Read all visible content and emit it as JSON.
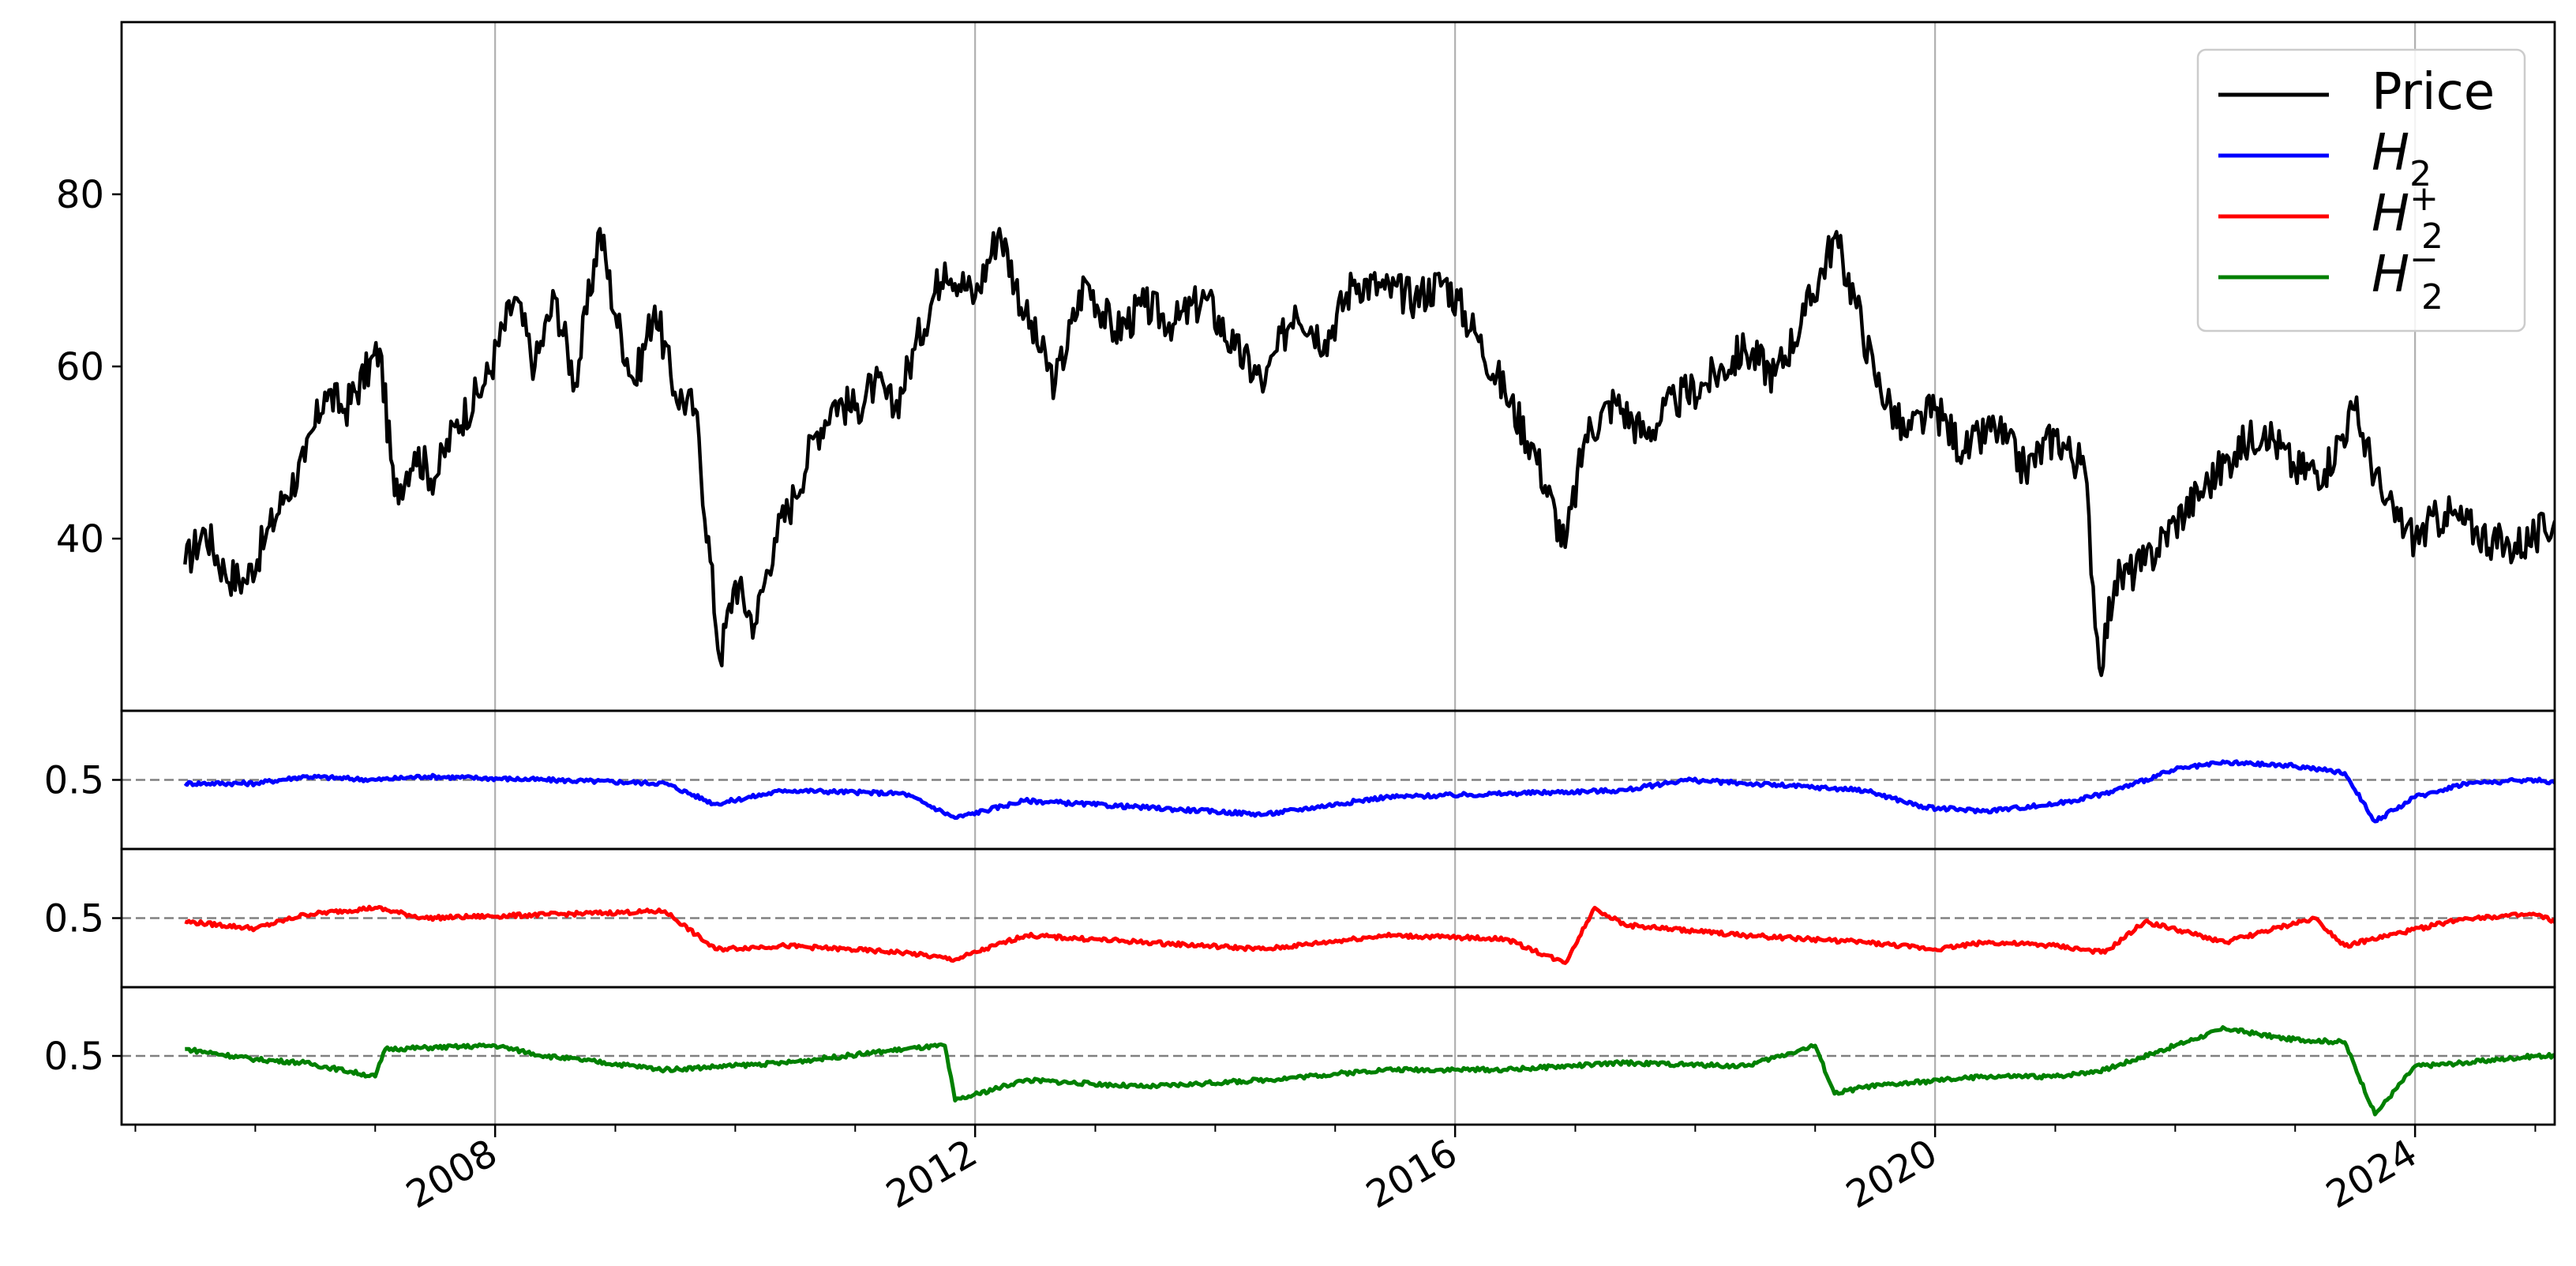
{
  "chart_data": {
    "type": "line",
    "title": "",
    "xlabel": "",
    "x_ticks": [
      "2008",
      "2012",
      "2016",
      "2020",
      "2024"
    ],
    "xlim": [
      "2004-11-20",
      "2025-03-01"
    ],
    "grid": "vertical lines at major year ticks",
    "legend_position": "top-right",
    "colors": {
      "price": "#000000",
      "h2": "#0000ff",
      "h2_plus": "#ff0000",
      "h2_minus": "#008000",
      "reference": "#808080"
    },
    "panels": [
      {
        "id": "price",
        "ylim": [
          20,
          100
        ],
        "y_ticks": [
          "40",
          "60",
          "80"
        ],
        "series": [
          {
            "name": "Price",
            "color": "#000000",
            "points": [
              [
                "2005-06-01",
                37
              ],
              [
                "2005-08-01",
                41
              ],
              [
                "2005-10-01",
                36
              ],
              [
                "2005-12-01",
                35
              ],
              [
                "2006-02-01",
                40
              ],
              [
                "2006-04-01",
                45
              ],
              [
                "2006-06-01",
                49
              ],
              [
                "2006-08-01",
                57
              ],
              [
                "2006-10-01",
                55
              ],
              [
                "2007-01-15",
                62
              ],
              [
                "2007-03-01",
                45
              ],
              [
                "2007-05-01",
                50
              ],
              [
                "2007-07-01",
                47
              ],
              [
                "2007-09-01",
                53
              ],
              [
                "2007-12-01",
                58
              ],
              [
                "2008-03-01",
                68
              ],
              [
                "2008-05-01",
                60
              ],
              [
                "2008-07-01",
                68
              ],
              [
                "2008-09-01",
                58
              ],
              [
                "2008-11-15",
                76
              ],
              [
                "2009-01-01",
                66
              ],
              [
                "2009-03-01",
                58
              ],
              [
                "2009-05-01",
                67
              ],
              [
                "2009-07-01",
                57
              ],
              [
                "2009-09-01",
                55
              ],
              [
                "2009-11-15",
                26
              ],
              [
                "2010-01-01",
                35
              ],
              [
                "2010-03-01",
                30
              ],
              [
                "2010-05-01",
                40
              ],
              [
                "2010-07-01",
                45
              ],
              [
                "2010-09-01",
                52
              ],
              [
                "2010-11-01",
                56
              ],
              [
                "2011-01-01",
                55
              ],
              [
                "2011-03-01",
                58
              ],
              [
                "2011-05-01",
                55
              ],
              [
                "2011-07-01",
                62
              ],
              [
                "2011-10-01",
                72
              ],
              [
                "2012-01-01",
                68
              ],
              [
                "2012-03-15",
                76
              ],
              [
                "2012-06-01",
                66
              ],
              [
                "2012-09-01",
                58
              ],
              [
                "2012-12-01",
                70
              ],
              [
                "2013-03-01",
                64
              ],
              [
                "2013-06-01",
                67
              ],
              [
                "2013-09-01",
                65
              ],
              [
                "2013-12-01",
                68
              ],
              [
                "2014-03-01",
                62
              ],
              [
                "2014-06-01",
                58
              ],
              [
                "2014-09-01",
                67
              ],
              [
                "2014-12-01",
                63
              ],
              [
                "2015-03-01",
                70
              ],
              [
                "2015-06-01",
                69
              ],
              [
                "2015-09-01",
                68
              ],
              [
                "2015-12-01",
                70
              ],
              [
                "2016-03-01",
                64
              ],
              [
                "2016-06-01",
                57
              ],
              [
                "2016-09-01",
                50
              ],
              [
                "2016-12-01",
                39
              ],
              [
                "2017-02-01",
                52
              ],
              [
                "2017-05-01",
                56
              ],
              [
                "2017-08-01",
                52
              ],
              [
                "2017-11-01",
                56
              ],
              [
                "2018-02-01",
                58
              ],
              [
                "2018-06-01",
                62
              ],
              [
                "2018-09-01",
                59
              ],
              [
                "2018-12-01",
                66
              ],
              [
                "2019-03-01",
                75
              ],
              [
                "2019-05-01",
                68
              ],
              [
                "2019-07-01",
                59
              ],
              [
                "2019-10-01",
                52
              ],
              [
                "2020-01-01",
                55
              ],
              [
                "2020-04-01",
                50
              ],
              [
                "2020-07-01",
                53
              ],
              [
                "2020-10-01",
                48
              ],
              [
                "2021-01-01",
                52
              ],
              [
                "2021-04-01",
                48
              ],
              [
                "2021-05-15",
                25
              ],
              [
                "2021-07-01",
                35
              ],
              [
                "2021-10-01",
                37
              ],
              [
                "2022-01-01",
                42
              ],
              [
                "2022-04-01",
                46
              ],
              [
                "2022-07-01",
                50
              ],
              [
                "2022-10-01",
                53
              ],
              [
                "2023-01-01",
                48
              ],
              [
                "2023-04-01",
                48
              ],
              [
                "2023-07-01",
                55
              ],
              [
                "2023-10-01",
                44
              ],
              [
                "2024-01-01",
                40
              ],
              [
                "2024-04-01",
                43
              ],
              [
                "2024-07-01",
                41
              ],
              [
                "2024-10-01",
                39
              ],
              [
                "2025-01-01",
                40
              ],
              [
                "2025-03-01",
                42
              ],
              [
                "2025-06-01",
                44
              ]
            ]
          }
        ]
      },
      {
        "id": "h2",
        "ylim": [
          0.3,
          0.7
        ],
        "y_ticks": [
          "0.5"
        ],
        "reference_line": 0.5,
        "series": [
          {
            "name": "H_2",
            "color": "#0000ff",
            "points": [
              [
                "2005-06-01",
                0.49
              ],
              [
                "2006-01-01",
                0.49
              ],
              [
                "2006-06-01",
                0.51
              ],
              [
                "2007-01-01",
                0.5
              ],
              [
                "2007-06-01",
                0.51
              ],
              [
                "2008-06-01",
                0.5
              ],
              [
                "2009-06-01",
                0.49
              ],
              [
                "2009-11-01",
                0.43
              ],
              [
                "2010-06-01",
                0.47
              ],
              [
                "2011-06-01",
                0.46
              ],
              [
                "2011-11-01",
                0.39
              ],
              [
                "2012-06-01",
                0.44
              ],
              [
                "2013-06-01",
                0.42
              ],
              [
                "2014-06-01",
                0.4
              ],
              [
                "2015-06-01",
                0.45
              ],
              [
                "2016-06-01",
                0.46
              ],
              [
                "2017-06-01",
                0.47
              ],
              [
                "2017-12-01",
                0.5
              ],
              [
                "2018-06-01",
                0.49
              ],
              [
                "2019-06-01",
                0.47
              ],
              [
                "2019-12-01",
                0.42
              ],
              [
                "2020-06-01",
                0.41
              ],
              [
                "2021-01-01",
                0.43
              ],
              [
                "2021-06-01",
                0.46
              ],
              [
                "2022-01-01",
                0.53
              ],
              [
                "2022-06-01",
                0.55
              ],
              [
                "2023-01-01",
                0.54
              ],
              [
                "2023-06-01",
                0.52
              ],
              [
                "2023-09-01",
                0.38
              ],
              [
                "2024-01-01",
                0.45
              ],
              [
                "2024-06-01",
                0.49
              ],
              [
                "2025-01-01",
                0.5
              ],
              [
                "2025-06-01",
                0.48
              ]
            ]
          }
        ]
      },
      {
        "id": "h2_plus",
        "ylim": [
          0.3,
          0.7
        ],
        "y_ticks": [
          "0.5"
        ],
        "reference_line": 0.5,
        "series": [
          {
            "name": "H_2^+",
            "color": "#ff0000",
            "points": [
              [
                "2005-06-01",
                0.49
              ],
              [
                "2006-01-01",
                0.47
              ],
              [
                "2006-06-01",
                0.51
              ],
              [
                "2007-01-01",
                0.53
              ],
              [
                "2007-06-01",
                0.5
              ],
              [
                "2008-06-01",
                0.51
              ],
              [
                "2009-06-01",
                0.52
              ],
              [
                "2009-11-01",
                0.41
              ],
              [
                "2010-06-01",
                0.42
              ],
              [
                "2011-06-01",
                0.4
              ],
              [
                "2011-11-01",
                0.38
              ],
              [
                "2012-06-01",
                0.45
              ],
              [
                "2013-06-01",
                0.43
              ],
              [
                "2014-06-01",
                0.41
              ],
              [
                "2015-06-01",
                0.45
              ],
              [
                "2016-06-01",
                0.44
              ],
              [
                "2016-12-01",
                0.37
              ],
              [
                "2017-03-01",
                0.53
              ],
              [
                "2017-06-01",
                0.48
              ],
              [
                "2018-06-01",
                0.45
              ],
              [
                "2019-06-01",
                0.43
              ],
              [
                "2020-01-01",
                0.41
              ],
              [
                "2020-06-01",
                0.43
              ],
              [
                "2021-01-01",
                0.42
              ],
              [
                "2021-06-01",
                0.4
              ],
              [
                "2021-10-01",
                0.49
              ],
              [
                "2022-06-01",
                0.43
              ],
              [
                "2023-03-01",
                0.5
              ],
              [
                "2023-06-01",
                0.42
              ],
              [
                "2024-06-01",
                0.5
              ],
              [
                "2025-01-01",
                0.51
              ],
              [
                "2025-06-01",
                0.46
              ]
            ]
          }
        ]
      },
      {
        "id": "h2_minus",
        "ylim": [
          0.3,
          0.7
        ],
        "y_ticks": [
          "0.5"
        ],
        "reference_line": 0.5,
        "series": [
          {
            "name": "H_2^-",
            "color": "#008000",
            "points": [
              [
                "2005-06-01",
                0.52
              ],
              [
                "2006-01-01",
                0.49
              ],
              [
                "2006-06-01",
                0.48
              ],
              [
                "2007-01-01",
                0.44
              ],
              [
                "2007-02-01",
                0.52
              ],
              [
                "2008-01-01",
                0.53
              ],
              [
                "2008-06-01",
                0.5
              ],
              [
                "2009-06-01",
                0.46
              ],
              [
                "2010-06-01",
                0.48
              ],
              [
                "2011-06-01",
                0.52
              ],
              [
                "2011-10-01",
                0.53
              ],
              [
                "2011-11-01",
                0.37
              ],
              [
                "2012-06-01",
                0.43
              ],
              [
                "2013-06-01",
                0.41
              ],
              [
                "2014-06-01",
                0.43
              ],
              [
                "2015-06-01",
                0.46
              ],
              [
                "2016-06-01",
                0.46
              ],
              [
                "2017-06-01",
                0.48
              ],
              [
                "2018-06-01",
                0.47
              ],
              [
                "2019-01-01",
                0.53
              ],
              [
                "2019-03-01",
                0.39
              ],
              [
                "2019-06-01",
                0.41
              ],
              [
                "2020-06-01",
                0.44
              ],
              [
                "2021-01-01",
                0.44
              ],
              [
                "2021-06-01",
                0.46
              ],
              [
                "2022-01-01",
                0.53
              ],
              [
                "2022-06-01",
                0.58
              ],
              [
                "2022-12-01",
                0.55
              ],
              [
                "2023-06-01",
                0.54
              ],
              [
                "2023-09-01",
                0.33
              ],
              [
                "2024-01-01",
                0.47
              ],
              [
                "2024-06-01",
                0.48
              ],
              [
                "2025-01-01",
                0.5
              ],
              [
                "2025-06-01",
                0.5
              ]
            ]
          }
        ]
      }
    ]
  },
  "legend": [
    {
      "label": "Price",
      "sub": "",
      "sup": "",
      "color": "#000000"
    },
    {
      "label": "H",
      "sub": "2",
      "sup": "",
      "color": "#0000ff"
    },
    {
      "label": "H",
      "sub": "2",
      "sup": "+",
      "color": "#ff0000"
    },
    {
      "label": "H",
      "sub": "2",
      "sup": "−",
      "color": "#008000"
    }
  ]
}
